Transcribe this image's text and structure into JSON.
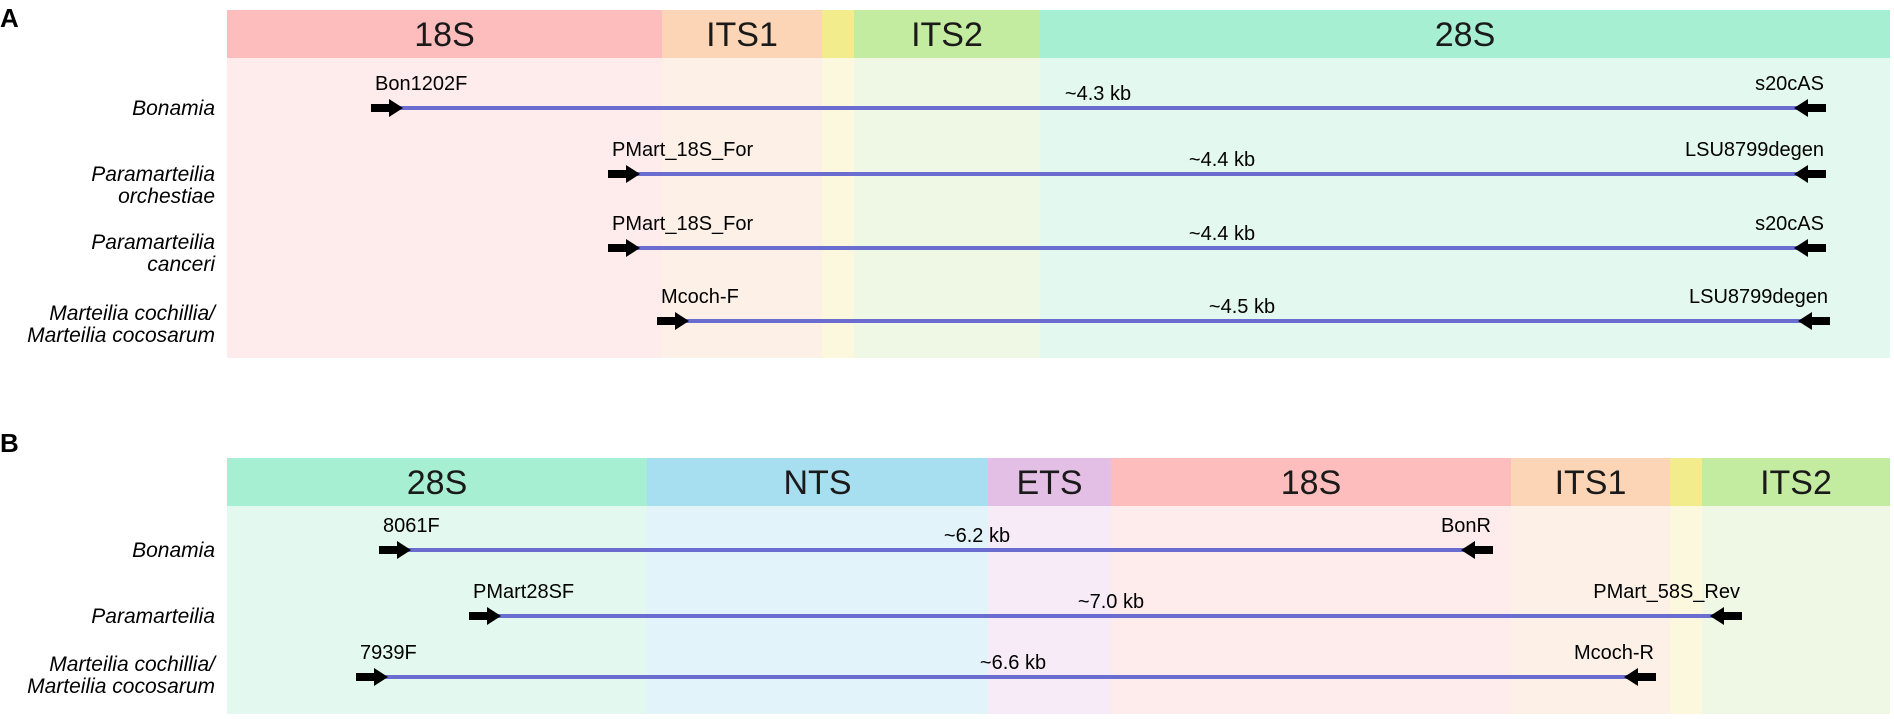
{
  "panels": [
    {
      "label": "A",
      "regions": [
        {
          "name": "18S",
          "color": "#fdbdbd",
          "light": "#feebeb"
        },
        {
          "name": "ITS1",
          "color": "#fbd5b5",
          "light": "#fdf0e6"
        },
        {
          "name": "",
          "color": "#f3ec8c",
          "light": "#fbf8dd"
        },
        {
          "name": "ITS2",
          "color": "#c4eca0",
          "light": "#eef8e4"
        },
        {
          "name": "28S",
          "color": "#a6efd2",
          "light": "#e3f8ef"
        }
      ],
      "rows": [
        {
          "species": [
            "Bonamia"
          ],
          "forward": "Bon1202F",
          "reverse": "s20cAS",
          "size": "~4.3 kb"
        },
        {
          "species": [
            "Paramarteilia",
            "orchestiae"
          ],
          "forward": "PMart_18S_For",
          "reverse": "LSU8799degen",
          "size": "~4.4 kb"
        },
        {
          "species": [
            "Paramarteilia",
            "canceri"
          ],
          "forward": "PMart_18S_For",
          "reverse": "s20cAS",
          "size": "~4.4 kb"
        },
        {
          "species": [
            "Marteilia cochillia/",
            "Marteilia cocosarum"
          ],
          "forward": "Mcoch-F",
          "reverse": "LSU8799degen",
          "size": "~4.5 kb"
        }
      ]
    },
    {
      "label": "B",
      "regions": [
        {
          "name": "28S",
          "color": "#a6efd2",
          "light": "#e3f8ef"
        },
        {
          "name": "NTS",
          "color": "#a8dff0",
          "light": "#e2f4fa"
        },
        {
          "name": "ETS",
          "color": "#e3bee5",
          "light": "#f6ebf7"
        },
        {
          "name": "18S",
          "color": "#fdbdbd",
          "light": "#feebeb"
        },
        {
          "name": "ITS1",
          "color": "#fbd5b5",
          "light": "#fdf0e6"
        },
        {
          "name": "",
          "color": "#f3ec8c",
          "light": "#fbf8dd"
        },
        {
          "name": "ITS2",
          "color": "#c4eca0",
          "light": "#eef8e4"
        }
      ],
      "rows": [
        {
          "species": [
            "Bonamia"
          ],
          "forward": "8061F",
          "reverse": "BonR",
          "size": "~6.2 kb"
        },
        {
          "species": [
            "Paramarteilia"
          ],
          "forward": "PMart28SF",
          "reverse": "PMart_58S_Rev",
          "size": "~7.0 kb"
        },
        {
          "species": [
            "Marteilia cochillia/",
            "Marteilia cocosarum"
          ],
          "forward": "7939F",
          "reverse": "Mcoch-R",
          "size": "~6.6 kb"
        }
      ]
    }
  ],
  "style": {
    "amplicon_color": "#6a6ccf",
    "arrow_color": "#000000"
  }
}
